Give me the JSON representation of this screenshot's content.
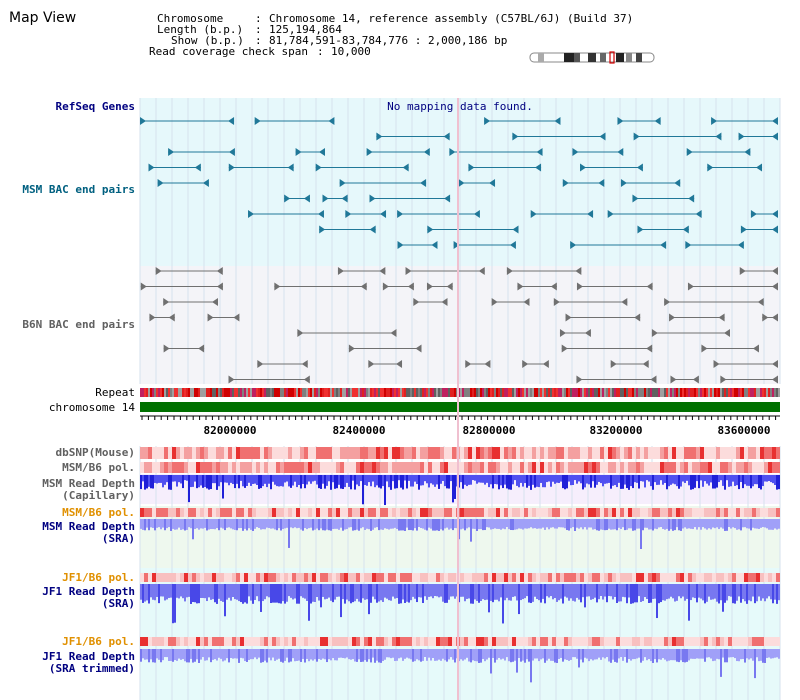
{
  "view_title": "Map View",
  "info": {
    "chromosome_label": "Chromosome",
    "chromosome_value": "Chromosome 14, reference assembly (C57BL/6J) (Build 37)",
    "length_label": "Length (b.p.)",
    "length_value": "125,194,864",
    "show_label": "Show (b.p.)",
    "show_value": "81,784,591-83,784,776 : 2,000,186 bp",
    "coverage_label": "Read coverage check span",
    "coverage_value": "10,000"
  },
  "tracks": {
    "refseq": {
      "label": "RefSeq Genes",
      "message": "No mapping data found.",
      "color": "#000080"
    },
    "msm_bac": {
      "label": "MSM BAC end pairs",
      "color": "#006080"
    },
    "b6n_bac": {
      "label": "B6N BAC end pairs",
      "color": "#606060"
    },
    "repeat": {
      "label": "Repeat"
    },
    "chrom": {
      "label": "chromosome 14",
      "color": "#007000"
    },
    "dbsnp": {
      "label": "dbSNP(Mouse)"
    },
    "msm_b6_pol": {
      "label": "MSM/B6 pol."
    },
    "msm_depth_cap": {
      "label1": "MSM Read Depth",
      "label2": "(Capillary)"
    },
    "msm_b6_pol2": {
      "label": "MSM/B6 pol.",
      "color": "#e09000"
    },
    "msm_depth_sra": {
      "label1": "MSM Read Depth",
      "label2": "(SRA)",
      "color": "#000080"
    },
    "jf1_b6_pol": {
      "label": "JF1/B6 pol.",
      "color": "#e09000"
    },
    "jf1_depth_sra": {
      "label1": "JF1 Read Depth",
      "label2": "(SRA)",
      "color": "#000080"
    },
    "jf1_b6_pol2": {
      "label": "JF1/B6 pol.",
      "color": "#e09000"
    },
    "jf1_depth_trim": {
      "label1": "JF1 Read Depth",
      "label2": "(SRA trimmed)",
      "color": "#000080"
    }
  },
  "ruler": {
    "tick_labels": [
      "82000000",
      "82400000",
      "82800000",
      "83200000",
      "83600000"
    ]
  },
  "colors": {
    "refseq_bg": "#e6f8fb",
    "msm_bac_bg": "#e6f8fb",
    "b6n_bac_bg": "#f4f4f8",
    "grid": "#c8d4e4",
    "cursor": "#f0c0d0"
  }
}
